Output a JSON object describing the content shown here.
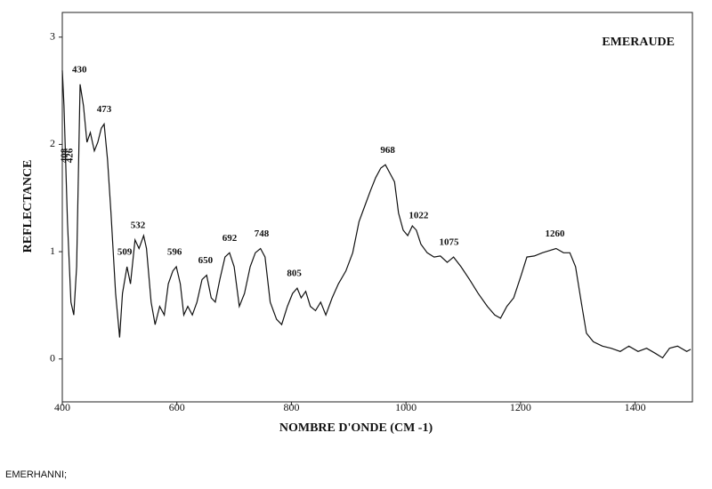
{
  "chart_data": {
    "type": "line",
    "title": "EMERAUDE",
    "x_label": "NOMBRE D'ONDE (CM -1)",
    "y_label": "REFLECTANCE",
    "caption": "EMERHANNI;",
    "x": [
      400,
      403,
      409,
      415,
      420,
      425,
      431,
      437,
      443,
      449,
      456,
      462,
      468,
      473,
      479,
      485,
      493,
      500,
      505,
      513,
      519,
      527,
      534,
      542,
      547,
      555,
      562,
      570,
      578,
      585,
      593,
      599,
      606,
      612,
      619,
      627,
      635,
      644,
      652,
      660,
      667,
      675,
      684,
      692,
      700,
      709,
      718,
      728,
      737,
      746,
      754,
      763,
      774,
      783,
      793,
      802,
      810,
      817,
      825,
      833,
      842,
      851,
      860,
      871,
      882,
      895,
      907,
      918,
      929,
      938,
      947,
      956,
      964,
      972,
      980,
      987,
      995,
      1003,
      1011,
      1018,
      1026,
      1037,
      1049,
      1060,
      1072,
      1083,
      1096,
      1111,
      1126,
      1142,
      1155,
      1165,
      1176,
      1188,
      1201,
      1211,
      1224,
      1238,
      1250,
      1262,
      1275,
      1286,
      1296,
      1306,
      1315,
      1327,
      1343,
      1358,
      1374,
      1389,
      1405,
      1420,
      1436,
      1448,
      1460,
      1474,
      1490,
      1497
    ],
    "series": [
      {
        "color": "#111111",
        "values": [
          2.69,
          2.36,
          1.28,
          0.53,
          0.41,
          0.86,
          2.56,
          2.36,
          2.02,
          2.11,
          1.94,
          2.02,
          2.15,
          2.19,
          1.86,
          1.36,
          0.61,
          0.2,
          0.61,
          0.86,
          0.7,
          1.11,
          1.03,
          1.15,
          1.03,
          0.53,
          0.32,
          0.49,
          0.41,
          0.7,
          0.82,
          0.86,
          0.7,
          0.41,
          0.49,
          0.41,
          0.53,
          0.74,
          0.78,
          0.57,
          0.53,
          0.74,
          0.95,
          0.99,
          0.86,
          0.49,
          0.61,
          0.86,
          0.99,
          1.03,
          0.95,
          0.53,
          0.37,
          0.32,
          0.49,
          0.61,
          0.66,
          0.57,
          0.63,
          0.49,
          0.45,
          0.53,
          0.41,
          0.57,
          0.7,
          0.82,
          0.99,
          1.28,
          1.44,
          1.57,
          1.69,
          1.78,
          1.81,
          1.73,
          1.65,
          1.36,
          1.2,
          1.15,
          1.24,
          1.2,
          1.07,
          0.99,
          0.95,
          0.96,
          0.9,
          0.95,
          0.86,
          0.74,
          0.61,
          0.49,
          0.41,
          0.38,
          0.49,
          0.57,
          0.78,
          0.95,
          0.96,
          0.99,
          1.01,
          1.03,
          0.99,
          0.99,
          0.86,
          0.53,
          0.24,
          0.16,
          0.12,
          0.1,
          0.07,
          0.12,
          0.07,
          0.1,
          0.05,
          0.01,
          0.1,
          0.12,
          0.07,
          0.09
        ]
      }
    ],
    "annotations": [
      408,
      426,
      430,
      473,
      509,
      532,
      596,
      650,
      692,
      748,
      805,
      968,
      1022,
      1075,
      1260
    ],
    "xlim": [
      400,
      1500
    ],
    "ylim": [
      -0.4,
      3.23
    ],
    "xticks": [
      400,
      600,
      800,
      1000,
      1200,
      1400
    ],
    "yticks": [
      0,
      1,
      2,
      3
    ]
  }
}
